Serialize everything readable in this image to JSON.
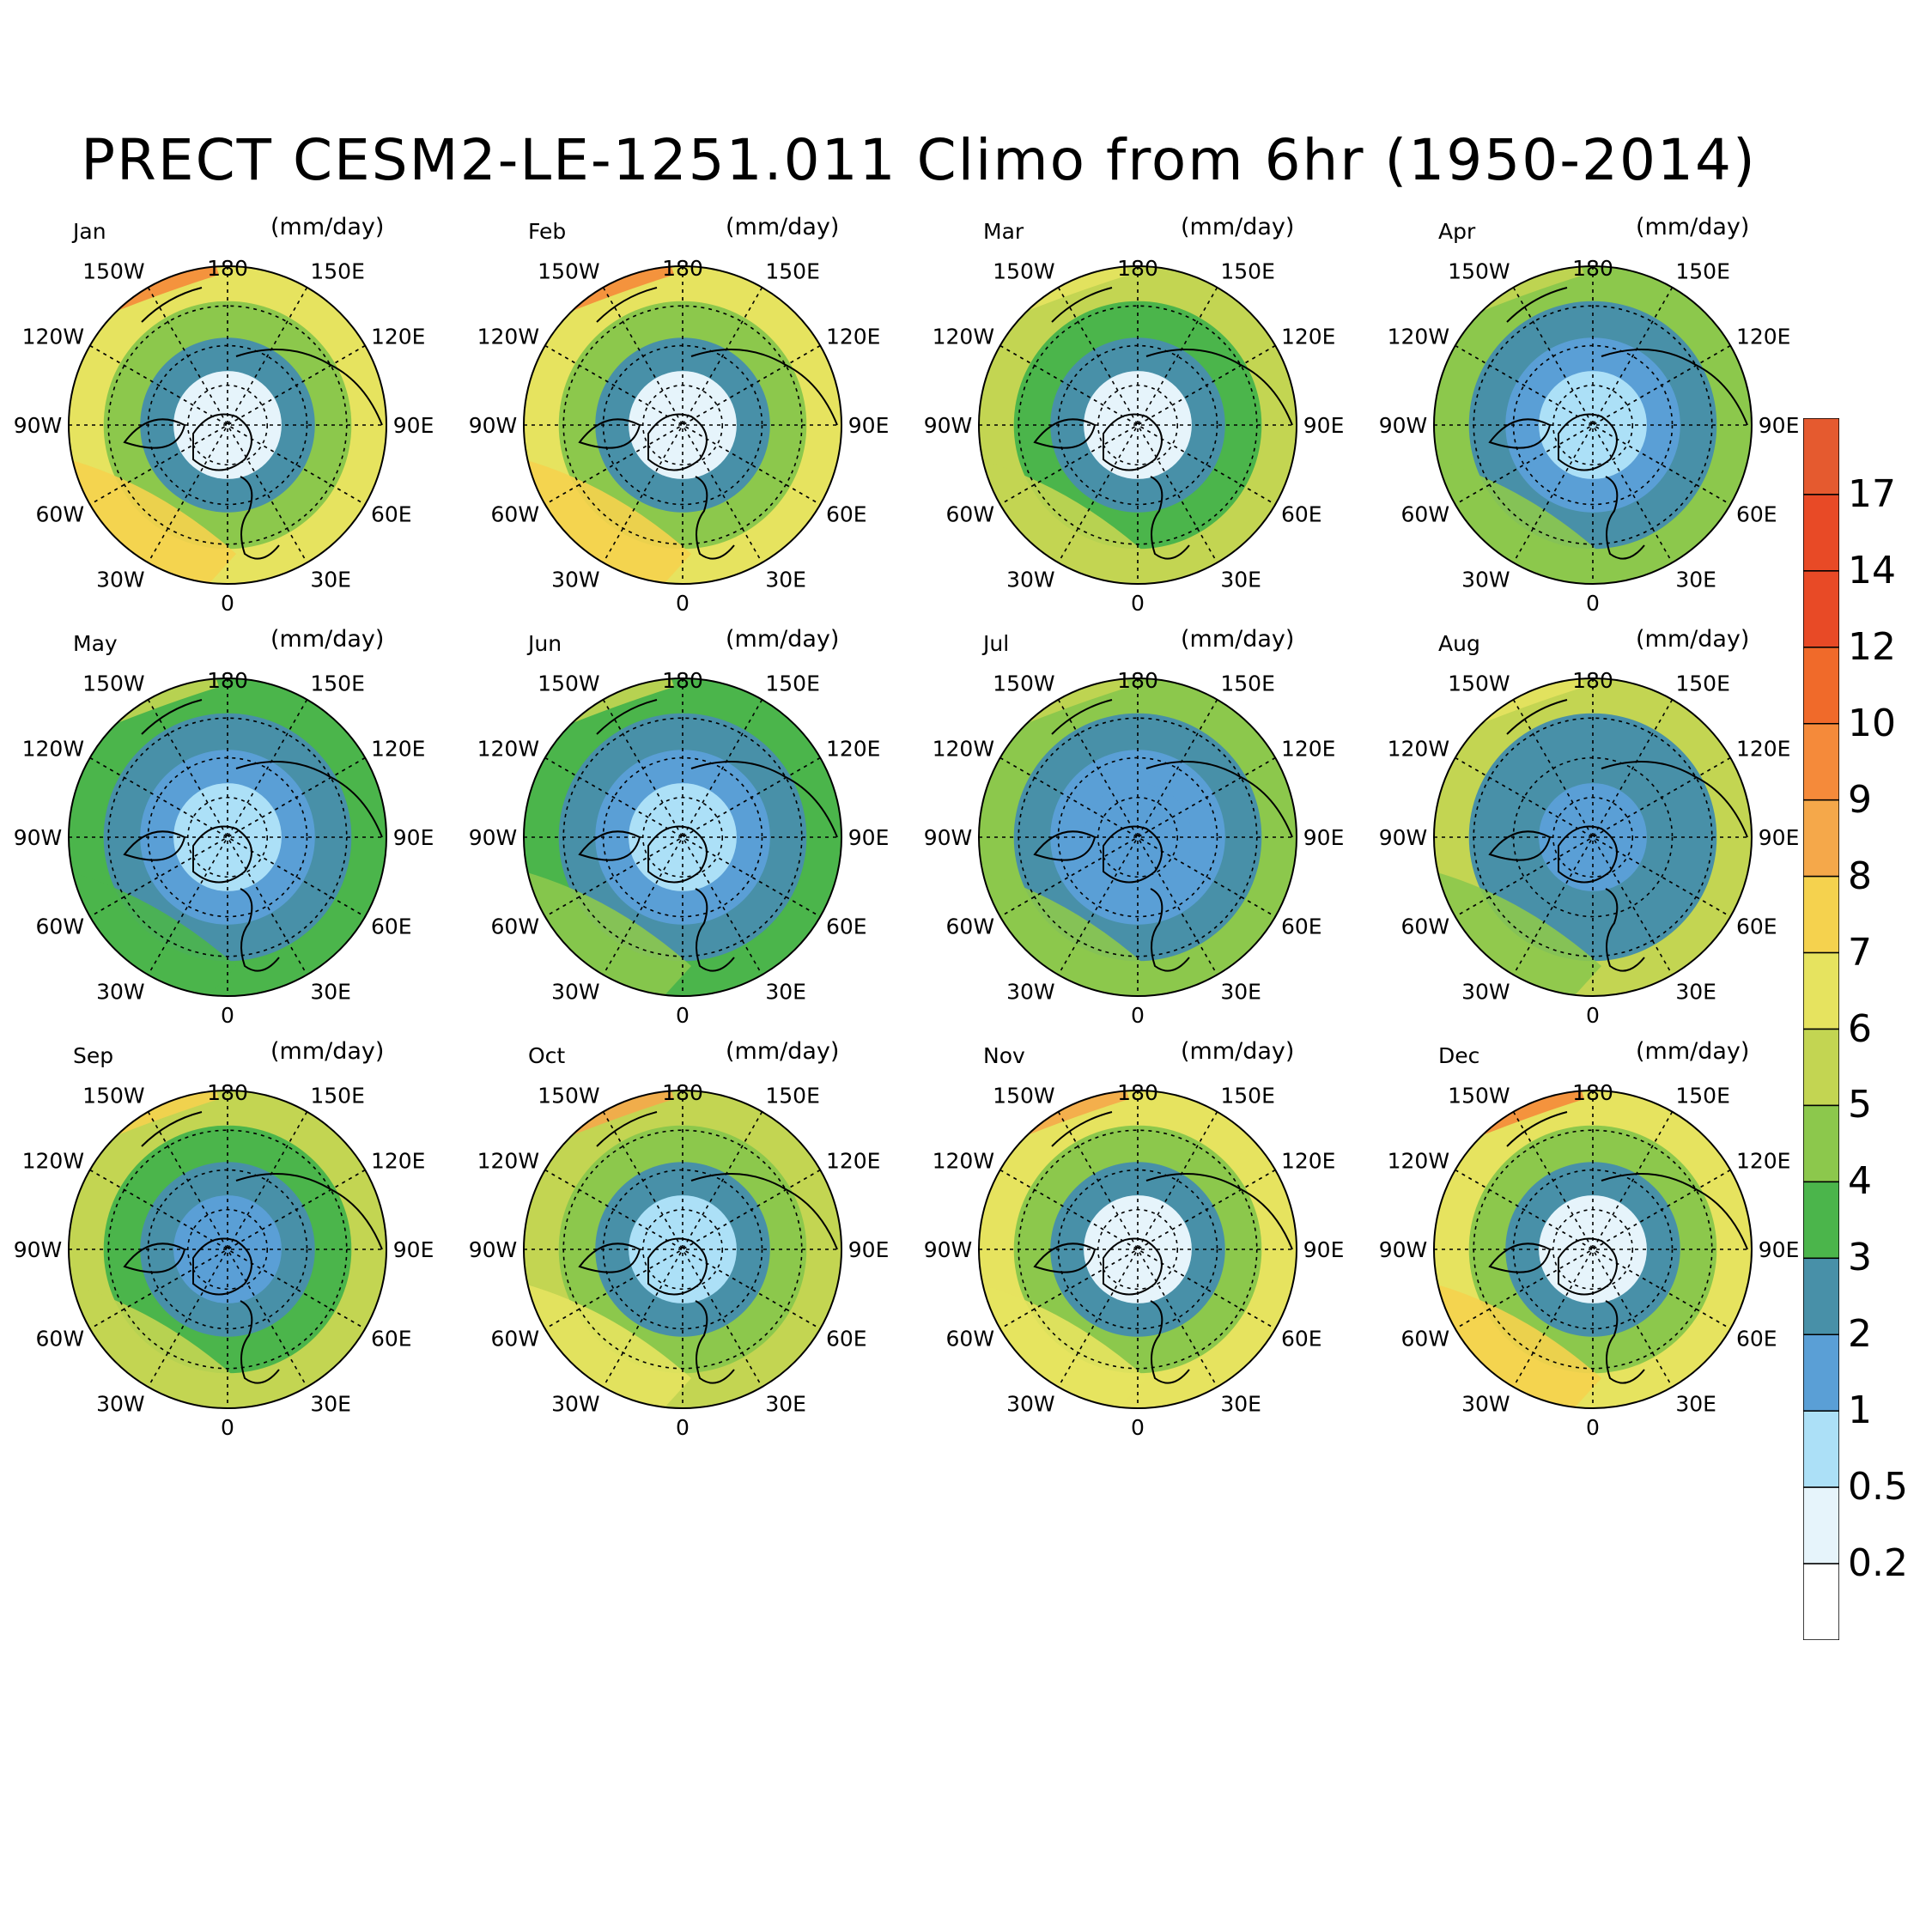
{
  "title": "PRECT CESM2-LE-1251.011 Climo from 6hr (1950-2014)",
  "units": "(mm/day)",
  "panels": [
    {
      "month": "Jan",
      "zone_levels": [
        6.5,
        4.5,
        2.5,
        0.3
      ],
      "pacific_band": 9,
      "atlantic_band": 7.5
    },
    {
      "month": "Feb",
      "zone_levels": [
        6.0,
        4.2,
        2.2,
        0.3
      ],
      "pacific_band": 9,
      "atlantic_band": 7
    },
    {
      "month": "Mar",
      "zone_levels": [
        5.0,
        3.5,
        2.0,
        0.4
      ],
      "pacific_band": 6,
      "atlantic_band": 5.5
    },
    {
      "month": "Apr",
      "zone_levels": [
        4.5,
        2.5,
        1.5,
        0.6
      ],
      "pacific_band": 5,
      "atlantic_band": 4.5
    },
    {
      "month": "May",
      "zone_levels": [
        3.0,
        2.5,
        1.5,
        0.8
      ],
      "pacific_band": 5,
      "atlantic_band": 3.5
    },
    {
      "month": "Jun",
      "zone_levels": [
        3.5,
        2.2,
        1.5,
        0.9
      ],
      "pacific_band": 5,
      "atlantic_band": 4
    },
    {
      "month": "Jul",
      "zone_levels": [
        4.5,
        2.2,
        1.8,
        1.2
      ],
      "pacific_band": 5,
      "atlantic_band": 4
    },
    {
      "month": "Aug",
      "zone_levels": [
        5.0,
        2.5,
        2.0,
        1.2
      ],
      "pacific_band": 6,
      "atlantic_band": 4.5
    },
    {
      "month": "Sep",
      "zone_levels": [
        5.0,
        3.0,
        2.0,
        1.0
      ],
      "pacific_band": 7,
      "atlantic_band": 5
    },
    {
      "month": "Oct",
      "zone_levels": [
        5.5,
        4.0,
        2.2,
        0.7
      ],
      "pacific_band": 8,
      "atlantic_band": 6
    },
    {
      "month": "Nov",
      "zone_levels": [
        6.0,
        4.5,
        2.5,
        0.4
      ],
      "pacific_band": 8,
      "atlantic_band": 6.5
    },
    {
      "month": "Dec",
      "zone_levels": [
        6.5,
        4.5,
        2.5,
        0.3
      ],
      "pacific_band": 9,
      "atlantic_band": 7.5
    }
  ],
  "map_labels": {
    "lon": [
      "180",
      "150E",
      "120E",
      "90E",
      "60E",
      "30E",
      "0",
      "30W",
      "60W",
      "90W",
      "120W",
      "150W"
    ]
  },
  "colorbar": {
    "colors": [
      "#ffffff",
      "#e6f4fb",
      "#ace0f7",
      "#5a9fd6",
      "#4890a8",
      "#4bb54b",
      "#8cc84c",
      "#c3d552",
      "#e6e35f",
      "#f5d24e",
      "#f5a84a",
      "#f58a3a",
      "#f06a2a",
      "#e84a26",
      "#e84a26",
      "#e55a2f"
    ],
    "tick_labels": [
      "0.2",
      "0.5",
      "1",
      "2",
      "3",
      "4",
      "5",
      "6",
      "7",
      "8",
      "9",
      "10",
      "12",
      "14",
      "17"
    ]
  },
  "colors": {
    "coast": "#000000",
    "grid": "#000000"
  }
}
